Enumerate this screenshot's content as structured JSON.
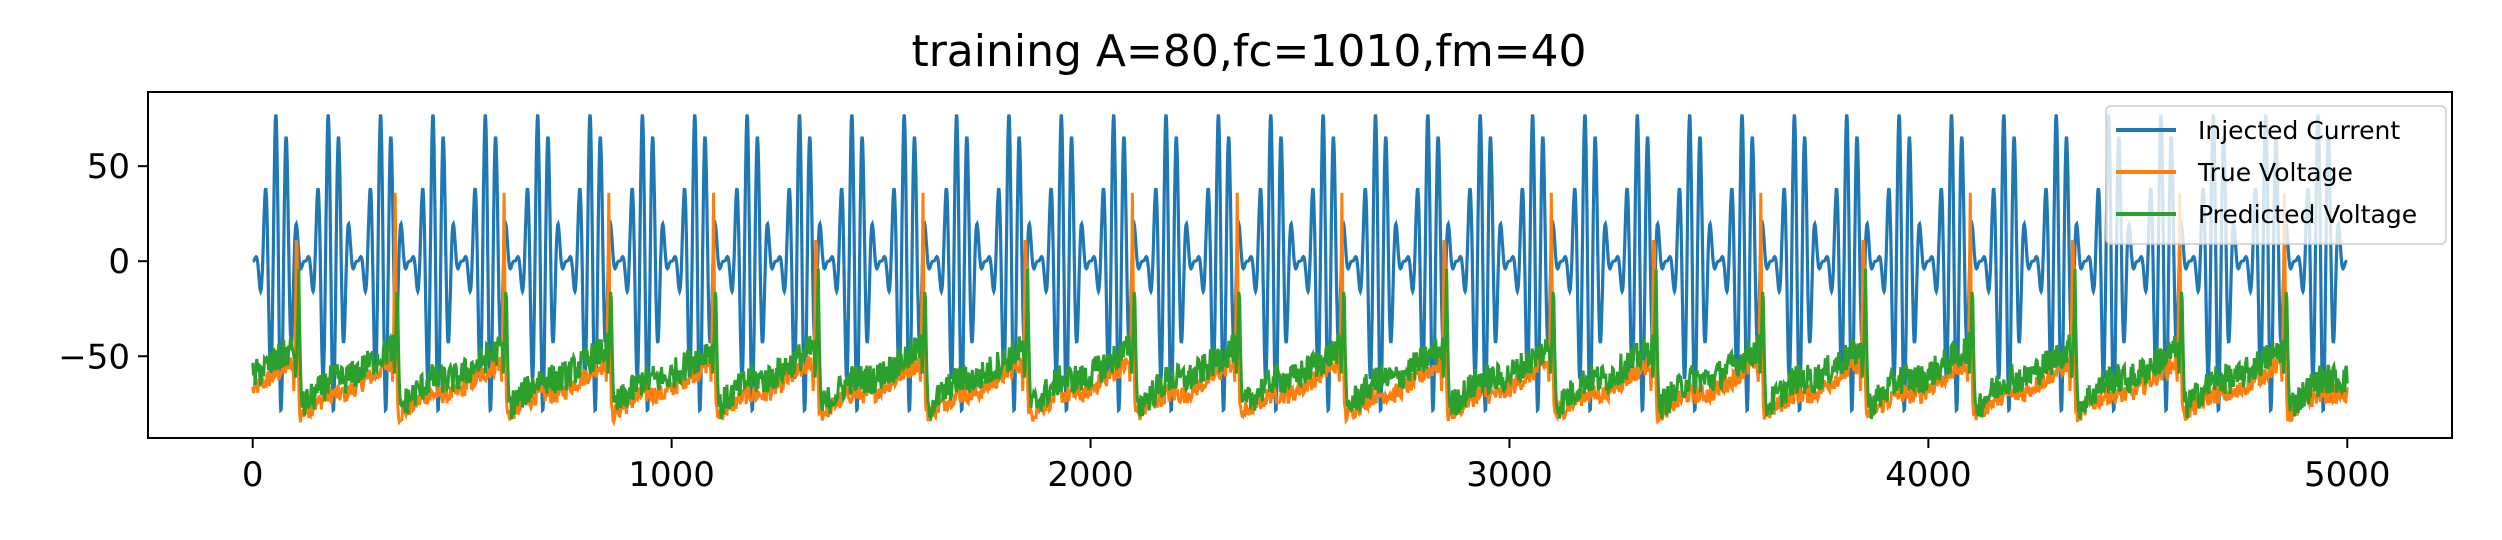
{
  "chart_data": {
    "type": "line",
    "title": "training A=80,fc=1010,fm=40",
    "xlabel": "",
    "ylabel": "",
    "xlim": [
      -250,
      5250
    ],
    "ylim": [
      -93,
      89
    ],
    "xticks": [
      0,
      1000,
      2000,
      3000,
      4000,
      5000
    ],
    "xtick_labels": [
      "0",
      "1000",
      "2000",
      "3000",
      "4000",
      "5000"
    ],
    "yticks": [
      -50,
      0,
      50
    ],
    "ytick_labels": [
      "−50",
      "0",
      "50"
    ],
    "legend_position": "top-right",
    "grid": false,
    "x_range": [
      0,
      5000
    ],
    "series": [
      {
        "name": "Injected Current",
        "color": "#1f77b4",
        "description_values": {
          "kind": "AM carrier",
          "amplitude": 80,
          "carrier_period_x": 25,
          "envelope_period_x": 125,
          "min": -80,
          "max": 80
        }
      },
      {
        "name": "True Voltage",
        "color": "#ff7f0e",
        "description_values": {
          "kind": "spiking",
          "resting_level": -70,
          "trough": -82,
          "spike_peak": 36,
          "spike_times": [
            105,
            340,
            600,
            850,
            1100,
            1345,
            1600,
            1845,
            2100,
            2350,
            2600,
            2845,
            3100,
            3345,
            3600,
            3845,
            4100,
            4345,
            4600,
            4850
          ]
        }
      },
      {
        "name": "Predicted Voltage",
        "color": "#2ca02c",
        "description_values": {
          "kind": "spiking",
          "resting_level": -62,
          "trough": -78,
          "spike_peak": -4,
          "spike_times": [
            110,
            345,
            605,
            855,
            1105,
            1350,
            1605,
            1850,
            2105,
            2355,
            2605,
            2850,
            3105,
            3350,
            3605,
            3850,
            4105,
            4350,
            4605,
            4855
          ]
        }
      }
    ]
  }
}
